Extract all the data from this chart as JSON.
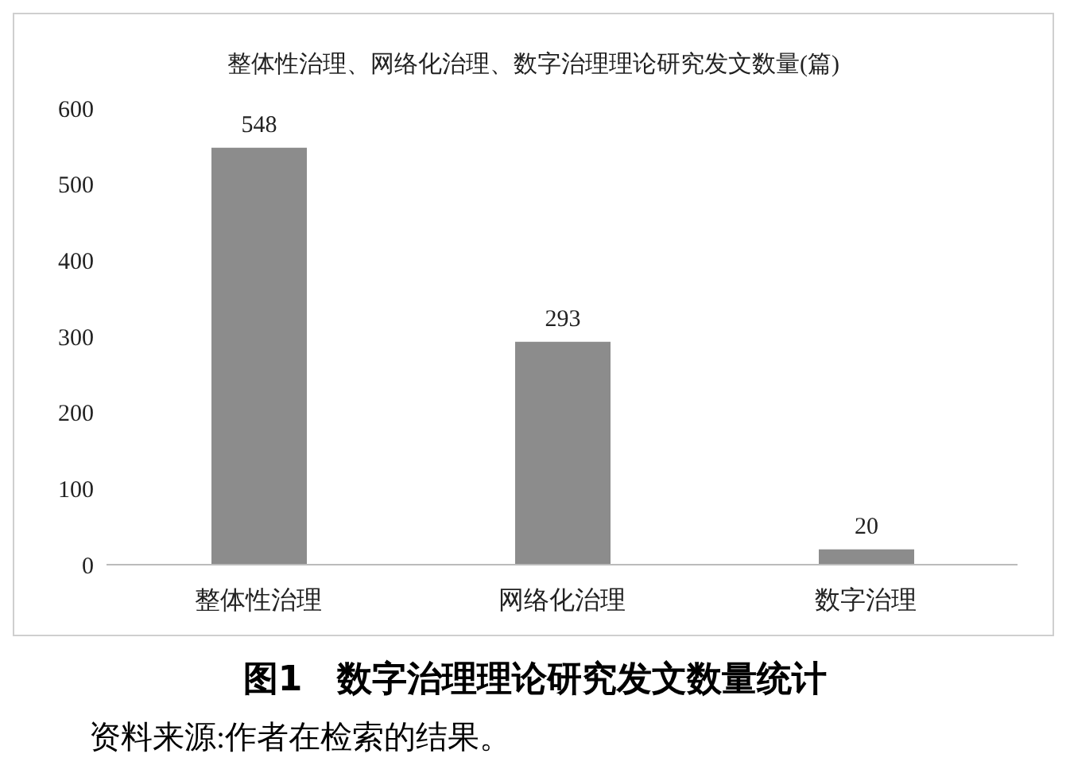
{
  "chart_data": {
    "type": "bar",
    "title": "整体性治理、网络化治理、数字治理理论研究发文数量(篇)",
    "categories": [
      "整体性治理",
      "网络化治理",
      "数字治理"
    ],
    "values": [
      548,
      293,
      20
    ],
    "color": "#8c8c8c",
    "ylim": [
      0,
      600
    ],
    "yticks": [
      0,
      100,
      200,
      300,
      400,
      500,
      600
    ],
    "grid": false,
    "data_labels": true,
    "annotations": [
      "图1　数字治理理论研究发文数量统计",
      "资料来源:作者在检索的结果。"
    ]
  }
}
